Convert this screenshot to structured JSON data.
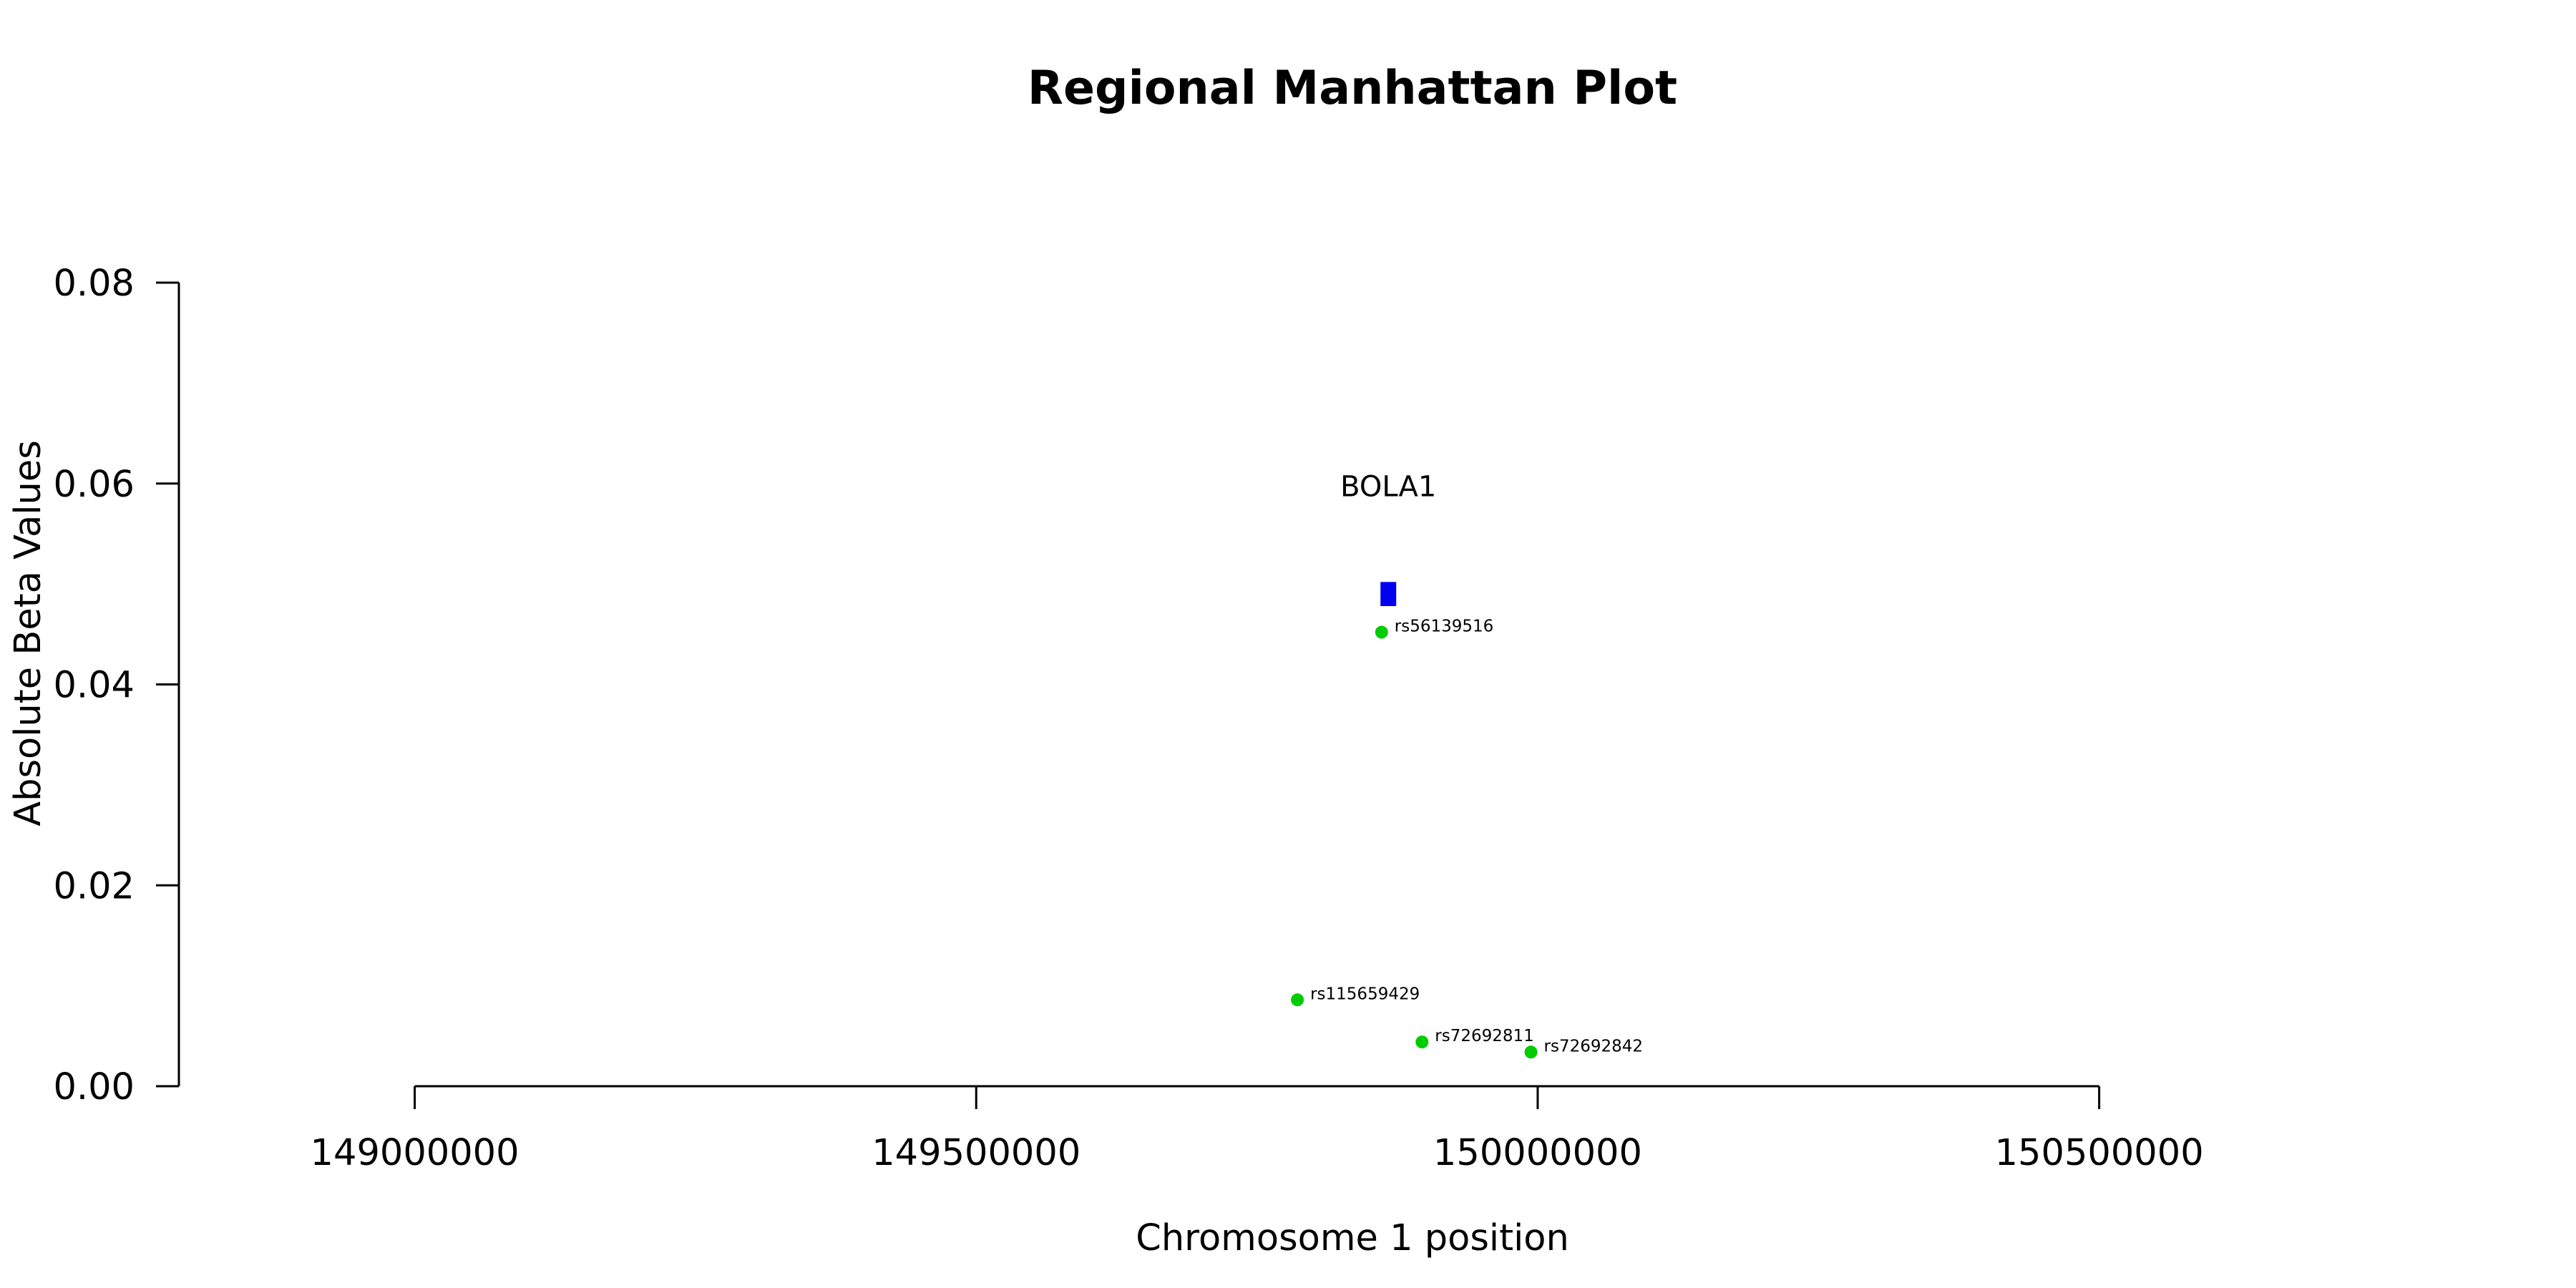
{
  "chart_data": {
    "type": "scatter",
    "title": "Regional Manhattan Plot",
    "xlabel": "Chromosome 1 position",
    "ylabel": "Absolute Beta Values",
    "xlim": [
      148790000,
      150880000
    ],
    "ylim": [
      0,
      0.08
    ],
    "x_ticks": [
      149000000,
      149500000,
      150000000,
      150500000
    ],
    "x_tick_labels": [
      "149000000",
      "149500000",
      "150000000",
      "150500000"
    ],
    "y_ticks": [
      0,
      0.02,
      0.04,
      0.06,
      0.08
    ],
    "y_tick_labels": [
      "0.00",
      "0.02",
      "0.04",
      "0.06",
      "0.08"
    ],
    "grid": false,
    "colors": {
      "snp": "#00cc00",
      "gene": "#0000ee",
      "axis": "#000000"
    },
    "genes": [
      {
        "name": "BOLA1",
        "start": 149860000,
        "end": 149874000,
        "beta_low": 0.0478,
        "beta_high": 0.0502
      }
    ],
    "series": [
      {
        "points": [
          {
            "id": "rs56139516",
            "x": 149861000,
            "y": 0.0452
          },
          {
            "id": "rs115659429",
            "x": 149786000,
            "y": 0.0086
          },
          {
            "id": "rs72692811",
            "x": 149897000,
            "y": 0.0044
          },
          {
            "id": "rs72692842",
            "x": 149994000,
            "y": 0.0034
          }
        ]
      }
    ]
  }
}
